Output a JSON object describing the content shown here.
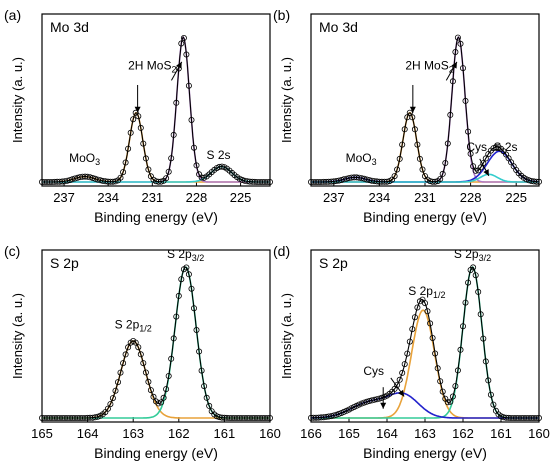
{
  "chart_data": [
    {
      "type": "line",
      "panel_label": "(a)",
      "title": "Mo 3d",
      "xlabel": "Binding energy (eV)",
      "ylabel": "Intensity (a. u.)",
      "xlim": [
        238.5,
        223
      ],
      "ylim": [
        0,
        1.0
      ],
      "x_reversed": true,
      "x_ticks": [
        237,
        234,
        231,
        228,
        225
      ],
      "x_tick_labels": [
        "237",
        "234",
        "231",
        "228",
        "225"
      ],
      "annotations": [
        {
          "text": "MoO",
          "sub": "3",
          "x": 235.6,
          "y": 0.13
        },
        {
          "text": "2H MoS",
          "sub": "2",
          "x": 231.0,
          "y": 0.73
        },
        {
          "text": "S 2s",
          "x": 226.5,
          "y": 0.15
        }
      ],
      "arrows": [
        {
          "from": [
            232.0,
            0.63
          ],
          "to": [
            232.0,
            0.45
          ]
        },
        {
          "from": [
            229.7,
            0.66
          ],
          "to": [
            229.0,
            0.78
          ]
        }
      ],
      "series": [
        {
          "color": "#e8a23a",
          "peaks": [
            {
              "center": 232.1,
              "height": 0.45,
              "sigma": 0.45
            },
            {
              "center": 235.6,
              "height": 0.035,
              "sigma": 0.7
            }
          ]
        },
        {
          "color": "#b07ac7",
          "peaks": [
            {
              "center": 228.9,
              "height": 0.94,
              "sigma": 0.43
            }
          ]
        },
        {
          "color": "#33cccc",
          "peaks": [
            {
              "center": 226.3,
              "height": 0.1,
              "sigma": 0.7
            }
          ]
        }
      ],
      "baseline": 0.0
    },
    {
      "type": "line",
      "panel_label": "(b)",
      "title": "Mo 3d",
      "xlabel": "Binding energy (eV)",
      "ylabel": "Intensity (a. u.)",
      "xlim": [
        238.5,
        223.5
      ],
      "ylim": [
        0,
        1.0
      ],
      "x_reversed": true,
      "x_ticks": [
        237,
        234,
        231,
        228,
        225
      ],
      "x_tick_labels": [
        "237",
        "234",
        "231",
        "228",
        "225"
      ],
      "annotations": [
        {
          "text": "MoO",
          "sub": "3",
          "x": 235.2,
          "y": 0.13
        },
        {
          "text": "2H MoS",
          "sub": "2",
          "x": 230.7,
          "y": 0.73
        },
        {
          "text": "Cys",
          "x": 227.6,
          "y": 0.2
        },
        {
          "text": "S 2s",
          "x": 225.7,
          "y": 0.2
        }
      ],
      "arrows": [
        {
          "from": [
            231.8,
            0.63
          ],
          "to": [
            231.8,
            0.45
          ]
        },
        {
          "from": [
            229.6,
            0.66
          ],
          "to": [
            228.9,
            0.78
          ]
        },
        {
          "from": [
            227.4,
            0.15
          ],
          "to": [
            226.8,
            0.04
          ]
        }
      ],
      "series": [
        {
          "color": "#e8a23a",
          "peaks": [
            {
              "center": 232.0,
              "height": 0.45,
              "sigma": 0.45
            }
          ]
        },
        {
          "color": "#b07ac7",
          "peaks": [
            {
              "center": 228.8,
              "height": 0.94,
              "sigma": 0.43
            }
          ]
        },
        {
          "color": "#2222cc",
          "peaks": [
            {
              "center": 226.1,
              "height": 0.2,
              "sigma": 0.8
            },
            {
              "center": 235.6,
              "height": 0.03,
              "sigma": 0.7
            }
          ]
        },
        {
          "color": "#33cccc",
          "peaks": [
            {
              "center": 226.8,
              "height": 0.05,
              "sigma": 0.55
            }
          ]
        }
      ],
      "baseline": 0.0
    },
    {
      "type": "line",
      "panel_label": "(c)",
      "title": "S 2p",
      "xlabel": "Binding energy (eV)",
      "ylabel": "Intensity (a. u.)",
      "xlim": [
        165,
        160
      ],
      "ylim": [
        0,
        1.0
      ],
      "x_reversed": true,
      "x_ticks": [
        165,
        164,
        163,
        162,
        161,
        160
      ],
      "x_tick_labels": [
        "165",
        "164",
        "163",
        "162",
        "161",
        "160"
      ],
      "annotations": [
        {
          "text": "S 2p",
          "sub": "1/2",
          "x": 163.0,
          "y": 0.58
        },
        {
          "text": "S 2p",
          "sub": "3/2",
          "x": 161.85,
          "y": 1.04
        }
      ],
      "arrows": [],
      "series": [
        {
          "color": "#e8a23a",
          "peaks": [
            {
              "center": 163.0,
              "height": 0.5,
              "sigma": 0.27
            }
          ]
        },
        {
          "color": "#33cc99",
          "peaks": [
            {
              "center": 161.85,
              "height": 0.98,
              "sigma": 0.23
            }
          ]
        }
      ],
      "baseline": 0.0
    },
    {
      "type": "line",
      "panel_label": "(d)",
      "title": "S 2p",
      "xlabel": "Binding energy (eV)",
      "ylabel": "Intensity (a. u.)",
      "xlim": [
        166,
        160
      ],
      "ylim": [
        0,
        1.0
      ],
      "x_reversed": true,
      "x_ticks": [
        166,
        165,
        164,
        163,
        162,
        161,
        160
      ],
      "x_tick_labels": [
        "166",
        "165",
        "164",
        "163",
        "162",
        "161",
        "160"
      ],
      "annotations": [
        {
          "text": "Cys",
          "x": 164.35,
          "y": 0.28
        },
        {
          "text": "S 2p",
          "sub": "1/2",
          "x": 162.95,
          "y": 0.8
        },
        {
          "text": "S 2p",
          "sub": "3/2",
          "x": 161.75,
          "y": 1.04
        }
      ],
      "arrows": [
        {
          "from": [
            164.1,
            0.2
          ],
          "to": [
            164.1,
            0.06
          ]
        },
        {
          "from": [
            163.9,
            0.26
          ],
          "to": [
            163.55,
            0.14
          ]
        }
      ],
      "series": [
        {
          "color": "#e8a23a",
          "peaks": [
            {
              "center": 163.05,
              "height": 0.7,
              "sigma": 0.3
            }
          ]
        },
        {
          "color": "#33cc99",
          "peaks": [
            {
              "center": 161.75,
              "height": 0.98,
              "sigma": 0.25
            }
          ]
        },
        {
          "color": "#2222cc",
          "peaks": [
            {
              "center": 163.55,
              "height": 0.14,
              "sigma": 0.4
            },
            {
              "center": 164.45,
              "height": 0.1,
              "sigma": 0.5
            }
          ]
        }
      ],
      "baseline": 0.0
    }
  ]
}
